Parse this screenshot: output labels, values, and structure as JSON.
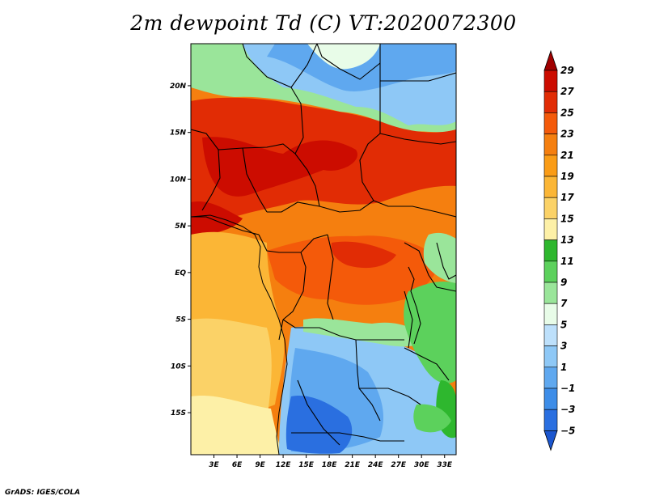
{
  "title": "2m dewpoint Td (C) VT:2020072300",
  "footer": "GrADS: IGES/COLA",
  "map": {
    "lat_labels": [
      "20N",
      "15N",
      "10N",
      "5N",
      "EQ",
      "5S",
      "10S",
      "15S"
    ],
    "lon_labels": [
      "3E",
      "6E",
      "9E",
      "12E",
      "15E",
      "18E",
      "21E",
      "24E",
      "27E",
      "30E",
      "33E"
    ],
    "lon_range": [
      0,
      34.5
    ],
    "lat_range": [
      -19.5,
      24.5
    ]
  },
  "colorbar": {
    "labels": [
      "29",
      "27",
      "25",
      "23",
      "21",
      "19",
      "17",
      "15",
      "13",
      "11",
      "9",
      "7",
      "5",
      "3",
      "1",
      "−1",
      "−3",
      "−5"
    ],
    "colors": [
      "#a00000",
      "#cc0c00",
      "#e12c05",
      "#f45a0a",
      "#f57f0f",
      "#fa9c16",
      "#fbb636",
      "#fbd267",
      "#fdf0a7",
      "#2eb72e",
      "#5cd15c",
      "#9ae59a",
      "#e8fce8",
      "#bde0fb",
      "#8ec8f6",
      "#5fa8ef",
      "#3d8de8",
      "#2a6fe0",
      "#1b56cf"
    ]
  },
  "regions": [
    {
      "name": "far-south-pale",
      "color": "#fdf0a7"
    },
    {
      "name": "southwest-light-orange",
      "color": "#fbd267"
    },
    {
      "name": "west-orange",
      "color": "#fbb636"
    },
    {
      "name": "main-orange",
      "color": "#f57f0f"
    },
    {
      "name": "sahel-red",
      "color": "#e12c05"
    },
    {
      "name": "sahel-red-dark",
      "color": "#cc0c00"
    },
    {
      "name": "congo-basin",
      "color": "#f45a0a"
    },
    {
      "name": "sahara-blue",
      "color": "#8ec8f6"
    },
    {
      "name": "sahara-lightgreen",
      "color": "#9ae59a"
    },
    {
      "name": "southern-africa-blue",
      "color": "#5fa8ef"
    },
    {
      "name": "southern-africa-darkblue",
      "color": "#2a6fe0"
    },
    {
      "name": "east-africa-green",
      "color": "#5cd15c"
    }
  ]
}
